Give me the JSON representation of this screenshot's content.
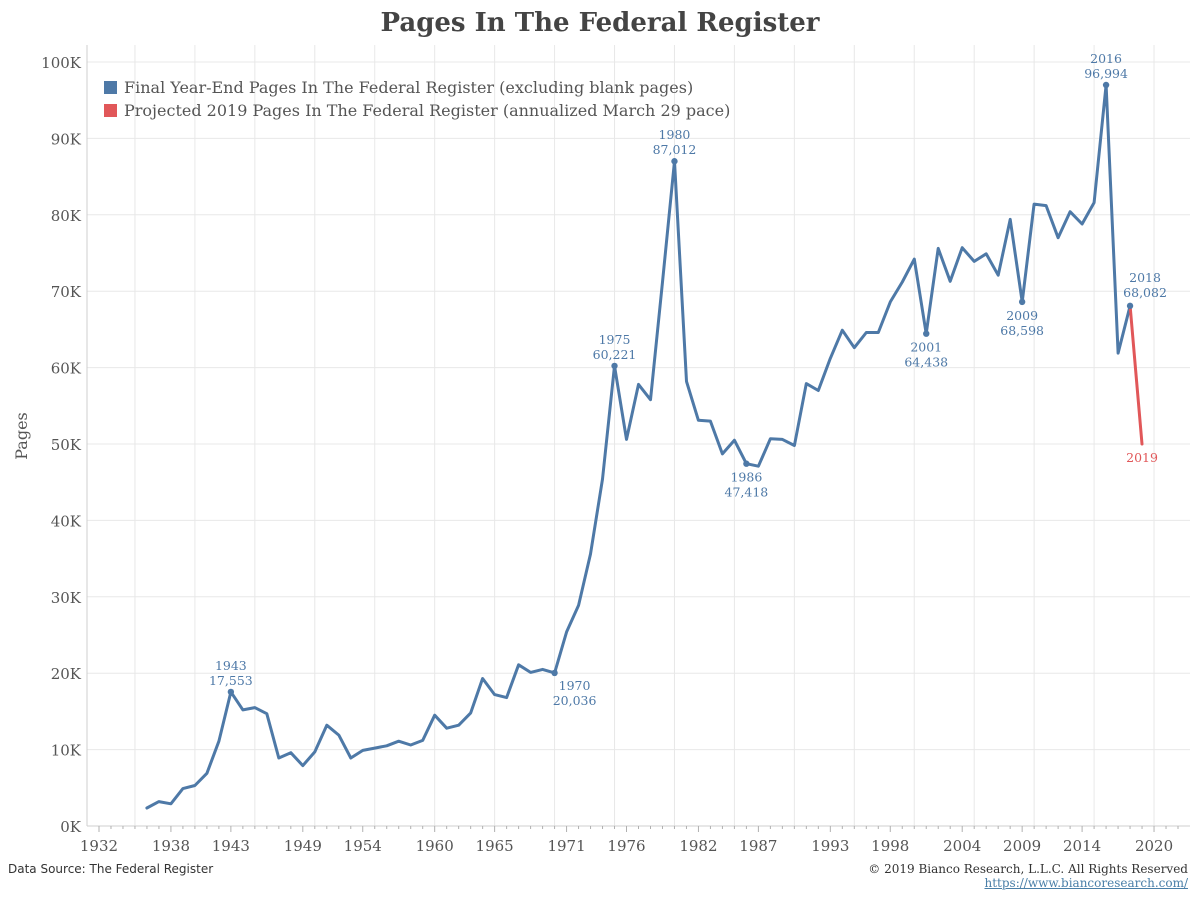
{
  "title": "Pages In The Federal Register",
  "footer": {
    "source": "Data Source: The Federal Register",
    "copyright": "© 2019 Bianco Research, L.L.C. All Rights Reserved",
    "url": "https://www.biancoresearch.com/"
  },
  "colors": {
    "series_main": "#4e79a7",
    "series_projected": "#e15759",
    "grid": "#e8e8e8",
    "text": "#555555"
  },
  "chart_data": {
    "type": "line",
    "title": "Pages In The Federal Register",
    "ylabel": "Pages",
    "xlabel": "",
    "xlim": [
      1931,
      2023
    ],
    "ylim": [
      0,
      100000
    ],
    "grid": true,
    "legend_position": "top-left",
    "x_ticks": [
      "1932",
      "1938",
      "1943",
      "1949",
      "1954",
      "1960",
      "1965",
      "1971",
      "1976",
      "1982",
      "1987",
      "1993",
      "1998",
      "2004",
      "2009",
      "2014",
      "2020"
    ],
    "y_ticks": [
      "0K",
      "10K",
      "20K",
      "30K",
      "40K",
      "50K",
      "60K",
      "70K",
      "80K",
      "90K",
      "100K"
    ],
    "series": [
      {
        "name": "Final Year-End Pages In The Federal Register (excluding blank pages)",
        "x": [
          1936,
          1937,
          1938,
          1939,
          1940,
          1941,
          1942,
          1943,
          1944,
          1945,
          1946,
          1947,
          1948,
          1949,
          1950,
          1951,
          1952,
          1953,
          1954,
          1955,
          1956,
          1957,
          1958,
          1959,
          1960,
          1961,
          1962,
          1963,
          1964,
          1965,
          1966,
          1967,
          1968,
          1969,
          1970,
          1971,
          1972,
          1973,
          1974,
          1975,
          1976,
          1977,
          1978,
          1979,
          1980,
          1981,
          1982,
          1983,
          1984,
          1985,
          1986,
          1987,
          1988,
          1989,
          1990,
          1991,
          1992,
          1993,
          1994,
          1995,
          1996,
          1997,
          1998,
          1999,
          2000,
          2001,
          2002,
          2003,
          2004,
          2005,
          2006,
          2007,
          2008,
          2009,
          2010,
          2011,
          2012,
          2013,
          2014,
          2015,
          2016,
          2017,
          2018
        ],
        "y": [
          2355,
          3200,
          2900,
          4900,
          5300,
          6900,
          11100,
          17553,
          15200,
          15500,
          14700,
          8900,
          9600,
          7900,
          9700,
          13200,
          11900,
          8900,
          9900,
          10200,
          10500,
          11100,
          10600,
          11200,
          14500,
          12800,
          13200,
          14800,
          19300,
          17200,
          16800,
          21100,
          20100,
          20500,
          20036,
          25400,
          28900,
          35600,
          45400,
          60221,
          50600,
          57800,
          55800,
          71200,
          87012,
          58200,
          53100,
          53000,
          48700,
          50500,
          47418,
          47100,
          50700,
          50600,
          49800,
          57900,
          57000,
          61200,
          64900,
          62600,
          64600,
          64600,
          68600,
          71200,
          74200,
          64438,
          75600,
          71300,
          75700,
          73900,
          74900,
          72100,
          79400,
          68598,
          81400,
          81200,
          77000,
          80400,
          78800,
          81600,
          96994,
          61900,
          68082
        ]
      },
      {
        "name": "Projected 2019 Pages In The Federal Register (annualized March 29 pace)",
        "x": [
          2018,
          2019
        ],
        "y": [
          68082,
          50000
        ]
      }
    ],
    "annotations": [
      {
        "year": "1943",
        "value": "17,553",
        "x": 1943,
        "y": 17553,
        "pos": "above"
      },
      {
        "year": "1970",
        "value": "20,036",
        "x": 1970,
        "y": 20036,
        "pos": "below-right"
      },
      {
        "year": "1975",
        "value": "60,221",
        "x": 1975,
        "y": 60221,
        "pos": "above"
      },
      {
        "year": "1980",
        "value": "87,012",
        "x": 1980,
        "y": 87012,
        "pos": "above"
      },
      {
        "year": "1986",
        "value": "47,418",
        "x": 1986,
        "y": 47418,
        "pos": "below"
      },
      {
        "year": "2001",
        "value": "64,438",
        "x": 2001,
        "y": 64438,
        "pos": "below"
      },
      {
        "year": "2009",
        "value": "68,598",
        "x": 2009,
        "y": 68598,
        "pos": "below"
      },
      {
        "year": "2016",
        "value": "96,994",
        "x": 2016,
        "y": 96994,
        "pos": "above"
      },
      {
        "year": "2018",
        "value": "68,082",
        "x": 2018,
        "y": 68082,
        "pos": "above-right"
      },
      {
        "year": "2019",
        "value": "",
        "x": 2019,
        "y": 50000,
        "pos": "below",
        "projected": true
      }
    ]
  }
}
